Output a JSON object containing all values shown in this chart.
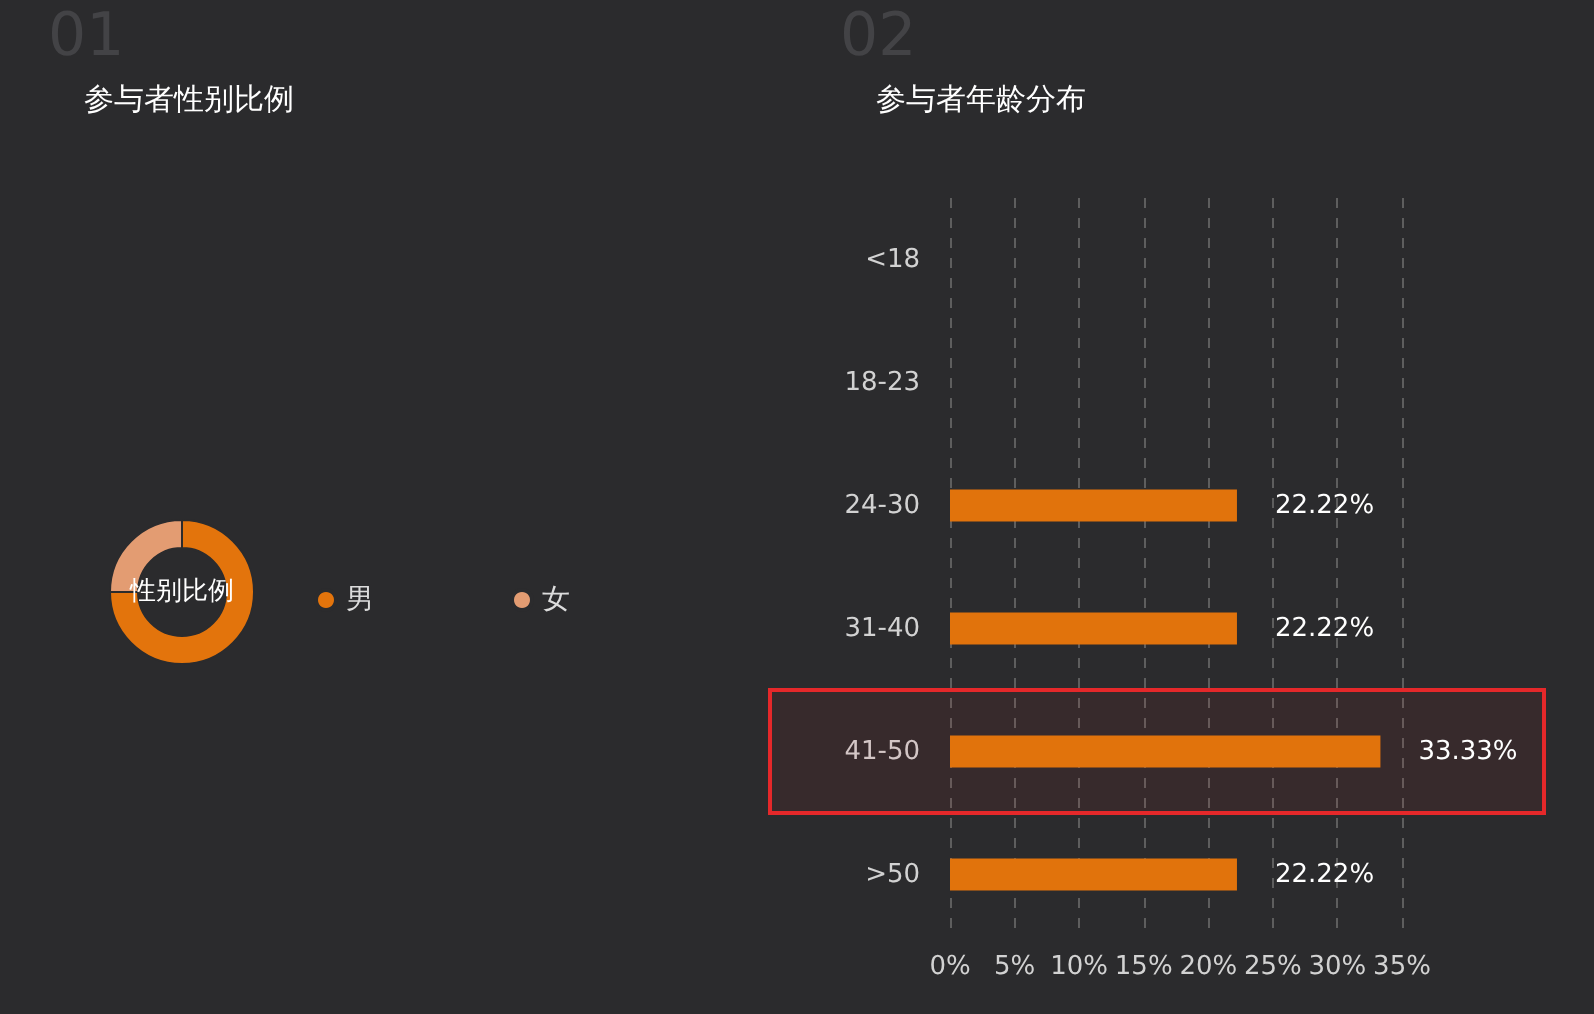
{
  "chart_data": [
    {
      "type": "donut",
      "title": "参与者性别比例",
      "annotations": [
        "01",
        "性别比例"
      ],
      "categories": [
        "男",
        "女"
      ],
      "values": [
        75,
        25
      ],
      "colors": [
        "#e3740c",
        "#e39c72"
      ],
      "legend": "right"
    },
    {
      "type": "bar",
      "orientation": "horizontal",
      "title": "参与者年龄分布",
      "annotations": [
        "02"
      ],
      "categories": [
        "<18",
        "18-23",
        "24-30",
        "31-40",
        "41-50",
        ">50"
      ],
      "values": [
        0,
        0,
        22.22,
        22.22,
        33.33,
        22.22
      ],
      "value_labels": [
        null,
        null,
        "22.22%",
        "22.22%",
        "33.33%",
        "22.22%"
      ],
      "color": "#e1730c",
      "xlim": [
        0,
        35
      ],
      "xticks": [
        {
          "value": 0,
          "label": "0%"
        },
        {
          "value": 5,
          "label": "5%"
        },
        {
          "value": 10,
          "label": "10%"
        },
        {
          "value": 15,
          "label": "15%"
        },
        {
          "value": 20,
          "label": "20%"
        },
        {
          "value": 25,
          "label": "25%"
        },
        {
          "value": 30,
          "label": "30%"
        },
        {
          "value": 35,
          "label": "35%"
        }
      ],
      "grid": "x",
      "bands": [
        {
          "axis": "y",
          "from": "41-50",
          "to": "41-50",
          "color": "#e5282a"
        }
      ]
    }
  ]
}
